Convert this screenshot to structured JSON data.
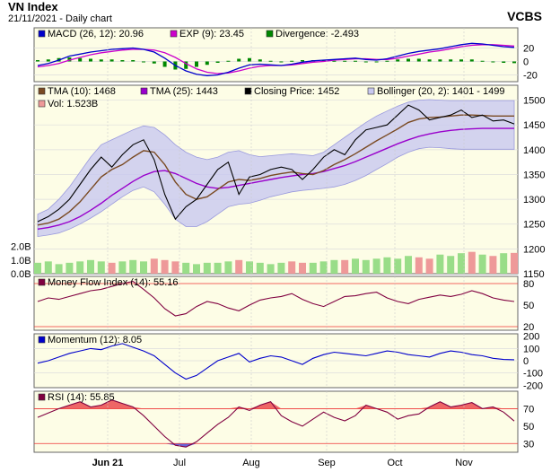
{
  "header": {
    "title": "VN Index",
    "subtitle": "21/11/2021 - Daily chart",
    "brand": "VCBS"
  },
  "colors": {
    "panel_bg": "#fdfde6",
    "macd": "#0000cc",
    "exp": "#cc00cc",
    "divergence": "#008800",
    "tma10": "#7a4a22",
    "tma25": "#9900cc",
    "close": "#000000",
    "bollinger_fill": "#c8c8f0",
    "bollinger_line": "#9999dd",
    "vol_up": "#99dd88",
    "vol_down": "#ee9999",
    "mfi": "#800040",
    "momentum": "#0000cc",
    "rsi": "#800040",
    "rsi_fill": "#ee6666",
    "ref_line": "#ee3333"
  },
  "chart_data": [
    {
      "panel": "macd",
      "type": "line",
      "legend": [
        "MACD (26, 12): 20.96",
        "EXP (9): 23.45",
        "Divergence: -2.493"
      ],
      "ylim": [
        -30,
        50
      ],
      "yticks": [
        "20",
        "0",
        "-20"
      ],
      "series": [
        {
          "name": "MACD",
          "values": [
            -6,
            -3,
            2,
            8,
            11,
            14,
            16,
            18,
            19,
            20,
            18,
            14,
            5,
            -6,
            -14,
            -19,
            -21,
            -20,
            -16,
            -10,
            -5,
            -4,
            -5,
            -6,
            -4,
            -1,
            1,
            2,
            3,
            4,
            5,
            3,
            2,
            4,
            8,
            12,
            15,
            17,
            19,
            22,
            25,
            27,
            26,
            24,
            22,
            21
          ]
        },
        {
          "name": "EXP",
          "values": [
            -8,
            -6,
            -3,
            2,
            6,
            10,
            13,
            15,
            17,
            18,
            18,
            17,
            13,
            6,
            -3,
            -11,
            -16,
            -18,
            -17,
            -14,
            -10,
            -7,
            -6,
            -6,
            -5,
            -3,
            -1,
            0,
            2,
            3,
            4,
            4,
            3,
            3,
            5,
            8,
            11,
            14,
            16,
            19,
            22,
            24,
            25,
            25,
            24,
            23
          ]
        },
        {
          "name": "Divergence",
          "values": [
            2,
            3,
            5,
            6,
            5,
            4,
            3,
            3,
            2,
            2,
            0,
            -3,
            -8,
            -12,
            -11,
            -8,
            -5,
            -2,
            1,
            4,
            5,
            3,
            1,
            0,
            1,
            2,
            2,
            2,
            1,
            1,
            1,
            -1,
            -1,
            1,
            3,
            4,
            4,
            3,
            3,
            3,
            3,
            3,
            1,
            -1,
            -2,
            -2.5
          ]
        }
      ]
    },
    {
      "panel": "price",
      "type": "line",
      "legend": [
        "TMA (10): 1468",
        "TMA (25): 1443",
        "Closing Price: 1452",
        "Bollinger (20, 2): 1401 - 1499",
        "Vol: 1.523B"
      ],
      "ylim": [
        1150,
        1530
      ],
      "yticks": [
        "1500",
        "1450",
        "1400",
        "1350",
        "1300",
        "1250",
        "1200",
        "1150"
      ],
      "vol_ticks": [
        "2.0B",
        "1.0B",
        "0.0B"
      ],
      "xlabels": [
        "Jun 21",
        "Jul",
        "Aug",
        "Sep",
        "Oct",
        "Nov"
      ],
      "series": [
        {
          "name": "Closing Price",
          "values": [
            1255,
            1265,
            1280,
            1300,
            1330,
            1360,
            1385,
            1365,
            1390,
            1410,
            1420,
            1380,
            1310,
            1260,
            1285,
            1300,
            1330,
            1360,
            1375,
            1310,
            1345,
            1350,
            1360,
            1365,
            1360,
            1340,
            1360,
            1385,
            1400,
            1390,
            1420,
            1440,
            1445,
            1450,
            1470,
            1490,
            1480,
            1460,
            1465,
            1470,
            1480,
            1465,
            1470,
            1458,
            1460,
            1452
          ]
        },
        {
          "name": "TMA (10)",
          "values": [
            1248,
            1252,
            1260,
            1275,
            1295,
            1320,
            1345,
            1360,
            1370,
            1385,
            1398,
            1395,
            1370,
            1335,
            1310,
            1300,
            1305,
            1320,
            1335,
            1340,
            1338,
            1342,
            1348,
            1352,
            1355,
            1352,
            1350,
            1358,
            1370,
            1380,
            1392,
            1405,
            1418,
            1430,
            1442,
            1455,
            1462,
            1465,
            1466,
            1468,
            1470,
            1470,
            1469,
            1468,
            1468,
            1468
          ]
        },
        {
          "name": "TMA (25)",
          "values": [
            1240,
            1243,
            1248,
            1255,
            1265,
            1278,
            1292,
            1308,
            1322,
            1336,
            1348,
            1356,
            1358,
            1352,
            1342,
            1332,
            1325,
            1322,
            1324,
            1328,
            1332,
            1336,
            1340,
            1344,
            1347,
            1350,
            1352,
            1356,
            1362,
            1368,
            1376,
            1385,
            1394,
            1403,
            1412,
            1420,
            1427,
            1432,
            1436,
            1439,
            1441,
            1442,
            1443,
            1443,
            1443,
            1443
          ]
        },
        {
          "name": "Bollinger Upper",
          "values": [
            1270,
            1280,
            1300,
            1325,
            1355,
            1385,
            1410,
            1420,
            1430,
            1440,
            1448,
            1445,
            1430,
            1410,
            1395,
            1385,
            1380,
            1385,
            1395,
            1398,
            1390,
            1386,
            1388,
            1390,
            1392,
            1390,
            1388,
            1395,
            1410,
            1425,
            1440,
            1455,
            1468,
            1478,
            1488,
            1496,
            1500,
            1501,
            1500,
            1499,
            1499,
            1499,
            1499,
            1499,
            1499,
            1499
          ]
        },
        {
          "name": "Bollinger Lower",
          "values": [
            1225,
            1228,
            1232,
            1240,
            1250,
            1262,
            1275,
            1290,
            1305,
            1318,
            1325,
            1315,
            1290,
            1260,
            1245,
            1245,
            1255,
            1270,
            1285,
            1290,
            1292,
            1298,
            1305,
            1310,
            1315,
            1318,
            1320,
            1322,
            1325,
            1330,
            1338,
            1348,
            1360,
            1372,
            1385,
            1395,
            1402,
            1405,
            1404,
            1402,
            1401,
            1401,
            1401,
            1401,
            1401,
            1401
          ]
        },
        {
          "name": "Vol",
          "values": [
            0.8,
            0.9,
            0.7,
            0.8,
            0.9,
            1.0,
            0.9,
            0.8,
            0.9,
            1.0,
            0.9,
            1.1,
            1.0,
            0.9,
            0.8,
            0.7,
            0.8,
            0.8,
            0.9,
            1.0,
            0.9,
            0.8,
            0.7,
            0.8,
            0.9,
            0.8,
            0.8,
            0.9,
            1.0,
            1.0,
            1.1,
            1.0,
            1.1,
            1.2,
            1.1,
            1.3,
            1.2,
            1.1,
            1.4,
            1.3,
            1.5,
            1.6,
            1.4,
            1.3,
            1.5,
            1.523
          ]
        }
      ]
    },
    {
      "panel": "mfi",
      "type": "line",
      "legend": [
        "Money Flow Index (14): 55.16"
      ],
      "ylim": [
        15,
        90
      ],
      "yticks": [
        "80",
        "50",
        "20"
      ],
      "ref_lines": [
        80,
        20
      ],
      "series": [
        {
          "name": "MFI",
          "values": [
            55,
            60,
            58,
            62,
            66,
            70,
            72,
            76,
            80,
            83,
            72,
            60,
            45,
            35,
            38,
            48,
            55,
            52,
            46,
            42,
            50,
            57,
            60,
            62,
            66,
            58,
            52,
            48,
            55,
            62,
            63,
            66,
            68,
            60,
            55,
            52,
            58,
            61,
            64,
            62,
            65,
            70,
            66,
            60,
            57,
            55
          ]
        }
      ]
    },
    {
      "panel": "momentum",
      "type": "line",
      "legend": [
        "Momentum (12): 8.05"
      ],
      "ylim": [
        -220,
        220
      ],
      "yticks": [
        "200",
        "100",
        "0",
        "-100",
        "-200"
      ],
      "series": [
        {
          "name": "Momentum",
          "values": [
            -20,
            0,
            30,
            60,
            80,
            100,
            90,
            120,
            140,
            110,
            80,
            40,
            -30,
            -100,
            -150,
            -120,
            -60,
            0,
            30,
            60,
            -10,
            20,
            40,
            30,
            0,
            -30,
            20,
            50,
            70,
            60,
            50,
            40,
            60,
            80,
            70,
            50,
            40,
            30,
            60,
            80,
            70,
            50,
            40,
            20,
            10,
            8
          ]
        }
      ]
    },
    {
      "panel": "rsi",
      "type": "line",
      "legend": [
        "RSI (14): 55.85"
      ],
      "ylim": [
        20,
        90
      ],
      "yticks": [
        "70",
        "50",
        "30"
      ],
      "ref_lines": [
        70,
        30
      ],
      "series": [
        {
          "name": "RSI",
          "values": [
            60,
            65,
            70,
            74,
            78,
            72,
            74,
            80,
            76,
            72,
            62,
            50,
            38,
            28,
            26,
            32,
            42,
            52,
            60,
            72,
            68,
            74,
            78,
            62,
            55,
            50,
            58,
            66,
            60,
            56,
            62,
            74,
            70,
            66,
            58,
            62,
            64,
            72,
            78,
            72,
            74,
            77,
            70,
            72,
            66,
            55.85
          ]
        }
      ]
    }
  ]
}
